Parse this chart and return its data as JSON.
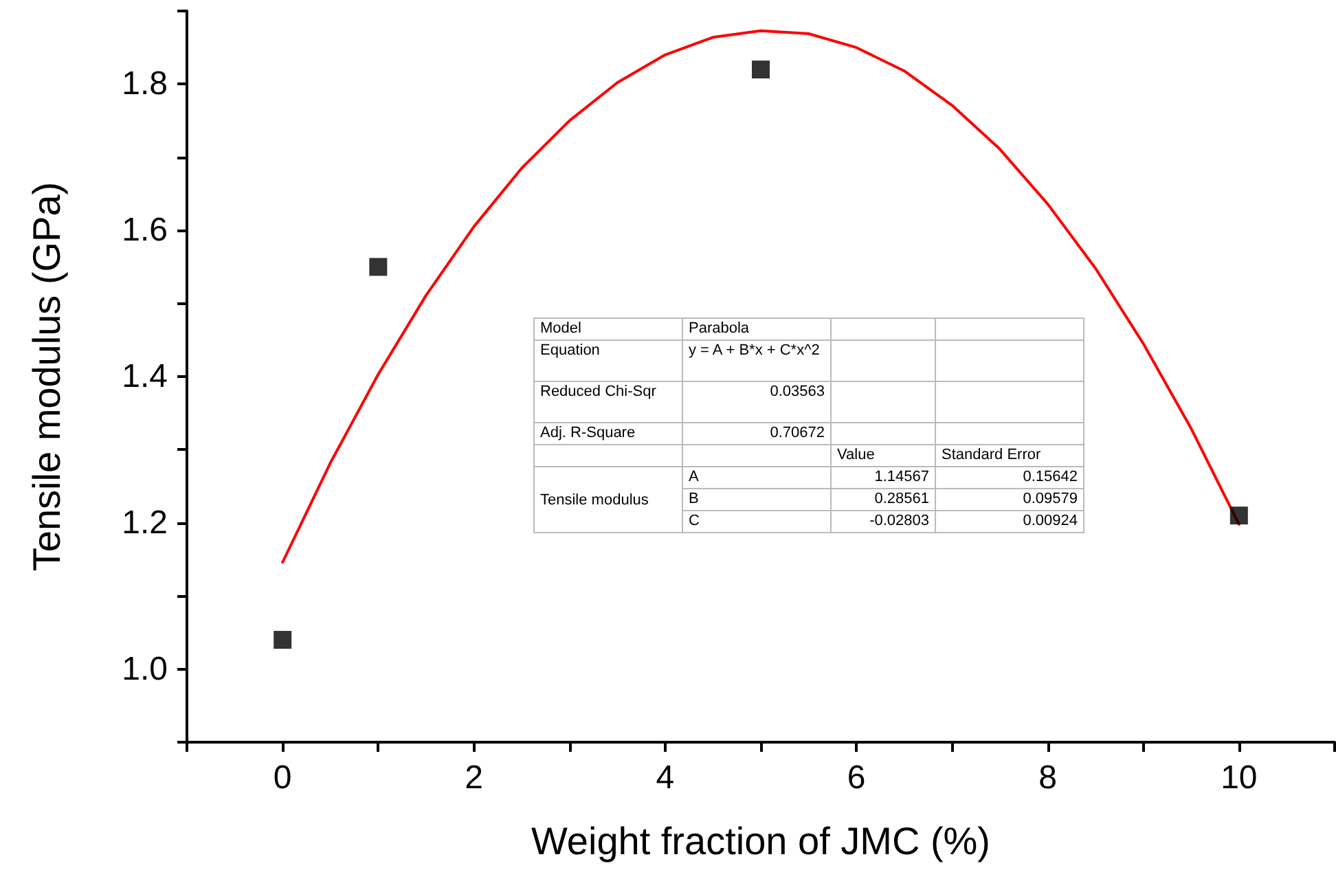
{
  "chart_data": {
    "type": "scatter",
    "xlabel": "Weight fraction of JMC (%)",
    "ylabel": "Tensile modulus (GPa)",
    "x": [
      0,
      1,
      5,
      10
    ],
    "series": [
      {
        "color": "#000000",
        "marker": "square",
        "values": [
          1.04,
          1.55,
          1.82,
          1.21
        ]
      },
      {
        "type": "line",
        "color": "#ff0000",
        "marker": "none",
        "line_style": "solid",
        "x": [
          0,
          0.5,
          1,
          1.5,
          2,
          2.5,
          3,
          3.5,
          4,
          4.5,
          5,
          5.5,
          6,
          6.5,
          7,
          7.5,
          8,
          8.5,
          9,
          9.5,
          10
        ],
        "values": [
          1.146,
          1.282,
          1.403,
          1.511,
          1.605,
          1.685,
          1.75,
          1.802,
          1.84,
          1.864,
          1.873,
          1.869,
          1.85,
          1.818,
          1.771,
          1.711,
          1.636,
          1.548,
          1.445,
          1.329,
          1.198
        ]
      }
    ],
    "xlim": [
      -1,
      11
    ],
    "xticks": [
      {
        "value": -1,
        "label": null
      },
      0,
      {
        "value": 1,
        "label": null
      },
      2,
      {
        "value": 3,
        "label": null
      },
      4,
      {
        "value": 5,
        "label": null
      },
      6,
      {
        "value": 7,
        "label": null
      },
      8,
      {
        "value": 9,
        "label": null
      },
      10,
      {
        "value": 11,
        "label": null
      }
    ],
    "ylim": [
      0.9,
      1.9
    ],
    "yticks": [
      {
        "value": 0.9,
        "label": null
      },
      {
        "value": 1.0,
        "label": "1.0"
      },
      {
        "value": 1.1,
        "label": null
      },
      {
        "value": 1.2,
        "label": "1.2"
      },
      {
        "value": 1.3,
        "label": null
      },
      {
        "value": 1.4,
        "label": "1.4"
      },
      {
        "value": 1.5,
        "label": null
      },
      {
        "value": 1.6,
        "label": "1.6"
      },
      {
        "value": 1.7,
        "label": null
      },
      {
        "value": 1.8,
        "label": "1.8"
      },
      {
        "value": 1.9,
        "label": null
      }
    ],
    "grid": false,
    "legend": false,
    "annotations": [
      "Model",
      "Parabola",
      "Equation",
      "y = A + B*x + C*x^2",
      "Reduced Chi-Sqr",
      "0.03563",
      "Adj. R-Square",
      "0.70672",
      "Value",
      "Standard Error",
      "Tensile modulus",
      "A",
      "1.14567",
      "0.15642",
      "B",
      "0.28561",
      "0.09579",
      "C",
      "-0.02803",
      "0.00924"
    ]
  }
}
